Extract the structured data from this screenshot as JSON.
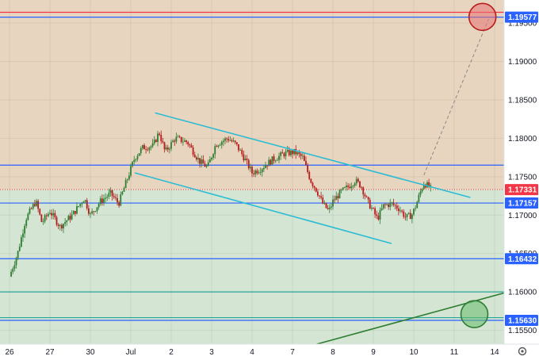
{
  "chart_data": {
    "type": "candlestick",
    "title": "",
    "xlabel": "",
    "ylabel": "",
    "ylim": [
      1.1532,
      1.198
    ],
    "x_range_days": [
      0,
      12.75
    ],
    "x_ticks": [
      {
        "label": "26",
        "day": 0.0
      },
      {
        "label": "27",
        "day": 1.0
      },
      {
        "label": "30",
        "day": 2.0
      },
      {
        "label": "Jul",
        "day": 3.0
      },
      {
        "label": "2",
        "day": 4.0
      },
      {
        "label": "3",
        "day": 5.0
      },
      {
        "label": "4",
        "day": 6.0
      },
      {
        "label": "7",
        "day": 7.0
      },
      {
        "label": "8",
        "day": 8.0
      },
      {
        "label": "9",
        "day": 9.0
      },
      {
        "label": "10",
        "day": 10.0
      },
      {
        "label": "11",
        "day": 11.0
      },
      {
        "label": "14",
        "day": 12.0
      }
    ],
    "y_ticks": [
      1.155,
      1.16,
      1.165,
      1.17,
      1.175,
      1.18,
      1.185,
      1.19,
      1.195
    ],
    "y_tick_labels": [
      "1.15500",
      "1.16000",
      "1.16500",
      "1.17000",
      "1.17500",
      "1.18000",
      "1.18500",
      "1.19000",
      "1.19500"
    ],
    "current_price": {
      "value": 1.17331,
      "label": "1.17331",
      "color": "#f23645"
    },
    "levels": [
      {
        "value": 1.19577,
        "label": "1.19577",
        "color": "#2962ff"
      },
      {
        "value": 1.17157,
        "label": "1.17157",
        "color": "#2962ff"
      },
      {
        "value": 1.16432,
        "label": "1.16432",
        "color": "#2962ff"
      },
      {
        "value": 1.1563,
        "label": "1.15630",
        "color": "#2962ff"
      },
      {
        "value": 1.1765,
        "label": "",
        "color": "#2962ff"
      },
      {
        "value": 1.1964,
        "label": "",
        "color": "#f23645"
      },
      {
        "value": 1.16,
        "label": "",
        "color": "#26a69a"
      },
      {
        "value": 1.15665,
        "label": "",
        "color": "#26a69a"
      }
    ],
    "zones": [
      {
        "from": 1.17331,
        "to": 1.198,
        "color": "#e8d5bf"
      },
      {
        "from": 1.1532,
        "to": 1.17331,
        "color": "#d4e5d3"
      }
    ],
    "channel_lines": [
      {
        "x1": 3.6,
        "y1": 1.1833,
        "x2": 11.4,
        "y2": 1.1723,
        "color": "#2bbcd4"
      },
      {
        "x1": 3.1,
        "y1": 1.1755,
        "x2": 9.45,
        "y2": 1.1663,
        "color": "#2bbcd4"
      }
    ],
    "trend_line": {
      "x1": 7.6,
      "y1": 1.1532,
      "x2": 12.75,
      "y2": 1.1606,
      "color": "#2e7d32"
    },
    "projection": {
      "x1": 10.25,
      "y1": 1.1752,
      "x2": 11.85,
      "y2": 1.1955,
      "color": "#888888"
    },
    "targets": [
      {
        "x": 11.7,
        "y": 1.1958,
        "color": "#b71c1c",
        "fill": "#e57373"
      },
      {
        "x": 11.5,
        "y": 1.1571,
        "color": "#2e7d32",
        "fill": "#66bb6a"
      }
    ],
    "up_color": "#2e7d32",
    "down_color": "#b71c1c",
    "candles": []
  }
}
